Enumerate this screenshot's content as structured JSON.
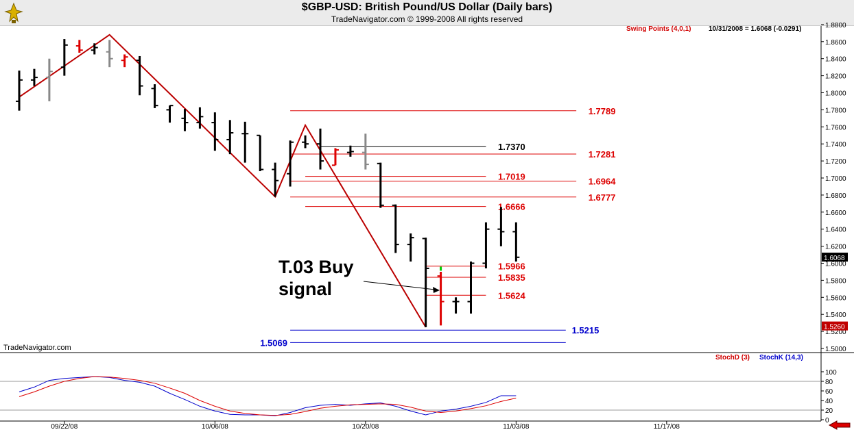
{
  "header": {
    "title": "$GBP-USD:  British Pound/US Dollar  (Daily bars)",
    "subtitle": "TradeNavigator.com © 1999-2008 All rights reserved"
  },
  "indicator_labels": {
    "swing_points": "Swing Points (4,0,1)",
    "quote": "10/31/2008 = 1.6068 (-0.0291)",
    "stoch_d": "StochD (3)",
    "stoch_k": "StochK (14,3)"
  },
  "watermark": "TradeNavigator.com",
  "annotation": {
    "line1": "T.03 Buy",
    "line2": "signal"
  },
  "colors": {
    "red": "#dd0000",
    "blue": "#0000cc",
    "black": "#000000",
    "gray": "#888888",
    "green": "#00cc00",
    "grid": "#999999"
  },
  "chart_data": {
    "type": "ohlc",
    "ylim": [
      1.49,
      1.89
    ],
    "y_ticks": [
      "1.5000",
      "1.5200",
      "1.5400",
      "1.5600",
      "1.5800",
      "1.6000",
      "1.6200",
      "1.6400",
      "1.6600",
      "1.6800",
      "1.7000",
      "1.7200",
      "1.7400",
      "1.7600",
      "1.7800",
      "1.8000",
      "1.8200",
      "1.8400",
      "1.8600",
      "1.8800"
    ],
    "x_tick_labels": [
      "09/22/08",
      "10/06/08",
      "10/20/08",
      "11/03/08",
      "11/17/08"
    ],
    "x_tick_bar_index": [
      3,
      13,
      23,
      33,
      43
    ],
    "last_price_tag": "1.6068",
    "stoch_price_tag": "1.5260",
    "bars": [
      {
        "high": 1.826,
        "low": 1.779,
        "open": 1.79,
        "close": 1.815,
        "color": "black"
      },
      {
        "high": 1.828,
        "low": 1.808,
        "open": 1.815,
        "close": 1.818,
        "color": "black"
      },
      {
        "high": 1.84,
        "low": 1.79,
        "open": 1.818,
        "close": 1.825,
        "color": "gray"
      },
      {
        "high": 1.863,
        "low": 1.82,
        "open": 1.83,
        "close": 1.856,
        "color": "black"
      },
      {
        "high": 1.862,
        "low": 1.847,
        "open": 1.855,
        "close": 1.85,
        "color": "red"
      },
      {
        "high": 1.858,
        "low": 1.845,
        "open": 1.85,
        "close": 1.853,
        "color": "black"
      },
      {
        "high": 1.862,
        "low": 1.83,
        "open": 1.848,
        "close": 1.84,
        "color": "gray"
      },
      {
        "high": 1.845,
        "low": 1.83,
        "open": 1.838,
        "close": 1.842,
        "color": "red"
      },
      {
        "high": 1.843,
        "low": 1.797,
        "open": 1.838,
        "close": 1.808,
        "color": "black"
      },
      {
        "high": 1.81,
        "low": 1.782,
        "open": 1.805,
        "close": 1.785,
        "color": "black"
      },
      {
        "high": 1.785,
        "low": 1.765,
        "open": 1.78,
        "close": 1.785,
        "color": "black"
      },
      {
        "high": 1.781,
        "low": 1.755,
        "open": 1.77,
        "close": 1.765,
        "color": "black"
      },
      {
        "high": 1.783,
        "low": 1.758,
        "open": 1.765,
        "close": 1.772,
        "color": "black"
      },
      {
        "high": 1.777,
        "low": 1.732,
        "open": 1.765,
        "close": 1.745,
        "color": "black"
      },
      {
        "high": 1.768,
        "low": 1.728,
        "open": 1.745,
        "close": 1.753,
        "color": "black"
      },
      {
        "high": 1.766,
        "low": 1.718,
        "open": 1.752,
        "close": 1.752,
        "color": "black"
      },
      {
        "high": 1.75,
        "low": 1.708,
        "open": 1.75,
        "close": 1.71,
        "color": "black"
      },
      {
        "high": 1.718,
        "low": 1.678,
        "open": 1.71,
        "close": 1.697,
        "color": "black"
      },
      {
        "high": 1.744,
        "low": 1.69,
        "open": 1.705,
        "close": 1.742,
        "color": "black"
      },
      {
        "high": 1.75,
        "low": 1.735,
        "open": 1.742,
        "close": 1.74,
        "color": "black"
      },
      {
        "high": 1.758,
        "low": 1.71,
        "open": 1.74,
        "close": 1.72,
        "color": "black"
      },
      {
        "high": 1.735,
        "low": 1.715,
        "open": 1.715,
        "close": 1.733,
        "color": "red"
      },
      {
        "high": 1.738,
        "low": 1.725,
        "open": 1.73,
        "close": 1.731,
        "color": "black"
      },
      {
        "high": 1.752,
        "low": 1.71,
        "open": 1.73,
        "close": 1.716,
        "color": "gray"
      },
      {
        "high": 1.718,
        "low": 1.665,
        "open": 1.717,
        "close": 1.668,
        "color": "black"
      },
      {
        "high": 1.669,
        "low": 1.612,
        "open": 1.668,
        "close": 1.622,
        "color": "black"
      },
      {
        "high": 1.635,
        "low": 1.602,
        "open": 1.622,
        "close": 1.63,
        "color": "black"
      },
      {
        "high": 1.63,
        "low": 1.525,
        "open": 1.629,
        "close": 1.594,
        "color": "black"
      },
      {
        "high": 1.59,
        "low": 1.527,
        "open": 1.585,
        "close": 1.555,
        "color": "red"
      },
      {
        "high": 1.56,
        "low": 1.541,
        "open": 1.555,
        "close": 1.555,
        "color": "black"
      },
      {
        "high": 1.602,
        "low": 1.541,
        "open": 1.555,
        "close": 1.6,
        "color": "black"
      },
      {
        "high": 1.648,
        "low": 1.594,
        "open": 1.6,
        "close": 1.64,
        "color": "black"
      },
      {
        "high": 1.666,
        "low": 1.62,
        "open": 1.64,
        "close": 1.637,
        "color": "black"
      },
      {
        "high": 1.648,
        "low": 1.602,
        "open": 1.637,
        "close": 1.607,
        "color": "black"
      }
    ],
    "green_tick": {
      "bar_index": 28,
      "value": 1.592
    },
    "swing_line": [
      {
        "bar_index": 0,
        "value": 1.795
      },
      {
        "bar_index": 6,
        "value": 1.868
      },
      {
        "bar_index": 17,
        "value": 1.678
      },
      {
        "bar_index": 19,
        "value": 1.762
      },
      {
        "bar_index": 27,
        "value": 1.525
      }
    ],
    "levels": [
      {
        "label": "1.7789",
        "value": 1.7789,
        "color": "red",
        "start_bar": 18,
        "end_bar": 37,
        "label_bar": 37.8
      },
      {
        "label": "1.7370",
        "value": 1.737,
        "color": "black",
        "start_bar": 20,
        "end_bar": 31,
        "label_bar": 31.8
      },
      {
        "label": "1.7281",
        "value": 1.7281,
        "color": "red",
        "start_bar": 18,
        "end_bar": 37,
        "label_bar": 37.8
      },
      {
        "label": "1.7019",
        "value": 1.7019,
        "color": "red",
        "start_bar": 19,
        "end_bar": 31,
        "label_bar": 31.8
      },
      {
        "label": "1.6964",
        "value": 1.6964,
        "color": "red",
        "start_bar": 18,
        "end_bar": 37,
        "label_bar": 37.8
      },
      {
        "label": "1.6777",
        "value": 1.6777,
        "color": "red",
        "start_bar": 18,
        "end_bar": 37,
        "label_bar": 37.8
      },
      {
        "label": "1.6666",
        "value": 1.6666,
        "color": "red",
        "start_bar": 19,
        "end_bar": 31,
        "label_bar": 31.8
      },
      {
        "label": "1.5966",
        "value": 1.5966,
        "color": "red",
        "start_bar": 27,
        "end_bar": 31,
        "label_bar": 31.8
      },
      {
        "label": "1.5835",
        "value": 1.5835,
        "color": "red",
        "start_bar": 27,
        "end_bar": 31,
        "label_bar": 31.8
      },
      {
        "label": "1.5624",
        "value": 1.5624,
        "color": "red",
        "start_bar": 27,
        "end_bar": 31,
        "label_bar": 31.8
      },
      {
        "label": "1.5215",
        "value": 1.5215,
        "color": "blue",
        "start_bar": 18,
        "end_bar": 36.3,
        "label_bar": 36.7
      },
      {
        "label": "1.5069",
        "value": 1.5069,
        "color": "blue",
        "start_bar": 18,
        "end_bar": 36.3,
        "label_bar": 16
      }
    ],
    "stochastic": {
      "ylim": [
        0,
        120
      ],
      "y_ticks": [
        "0",
        "20",
        "40",
        "60",
        "80",
        "100"
      ],
      "upper_band": 80,
      "lower_band": 20,
      "stoch_k": [
        58,
        68,
        82,
        86,
        88,
        90,
        88,
        82,
        78,
        70,
        55,
        42,
        28,
        18,
        11,
        10,
        10,
        8,
        15,
        25,
        30,
        32,
        30,
        33,
        35,
        28,
        18,
        10,
        18,
        22,
        28,
        36,
        50,
        50
      ],
      "stoch_d": [
        48,
        58,
        70,
        80,
        86,
        90,
        89,
        86,
        82,
        76,
        66,
        55,
        40,
        28,
        18,
        13,
        10,
        9,
        11,
        17,
        24,
        28,
        31,
        32,
        33,
        32,
        26,
        18,
        15,
        18,
        23,
        29,
        38,
        45
      ]
    }
  }
}
